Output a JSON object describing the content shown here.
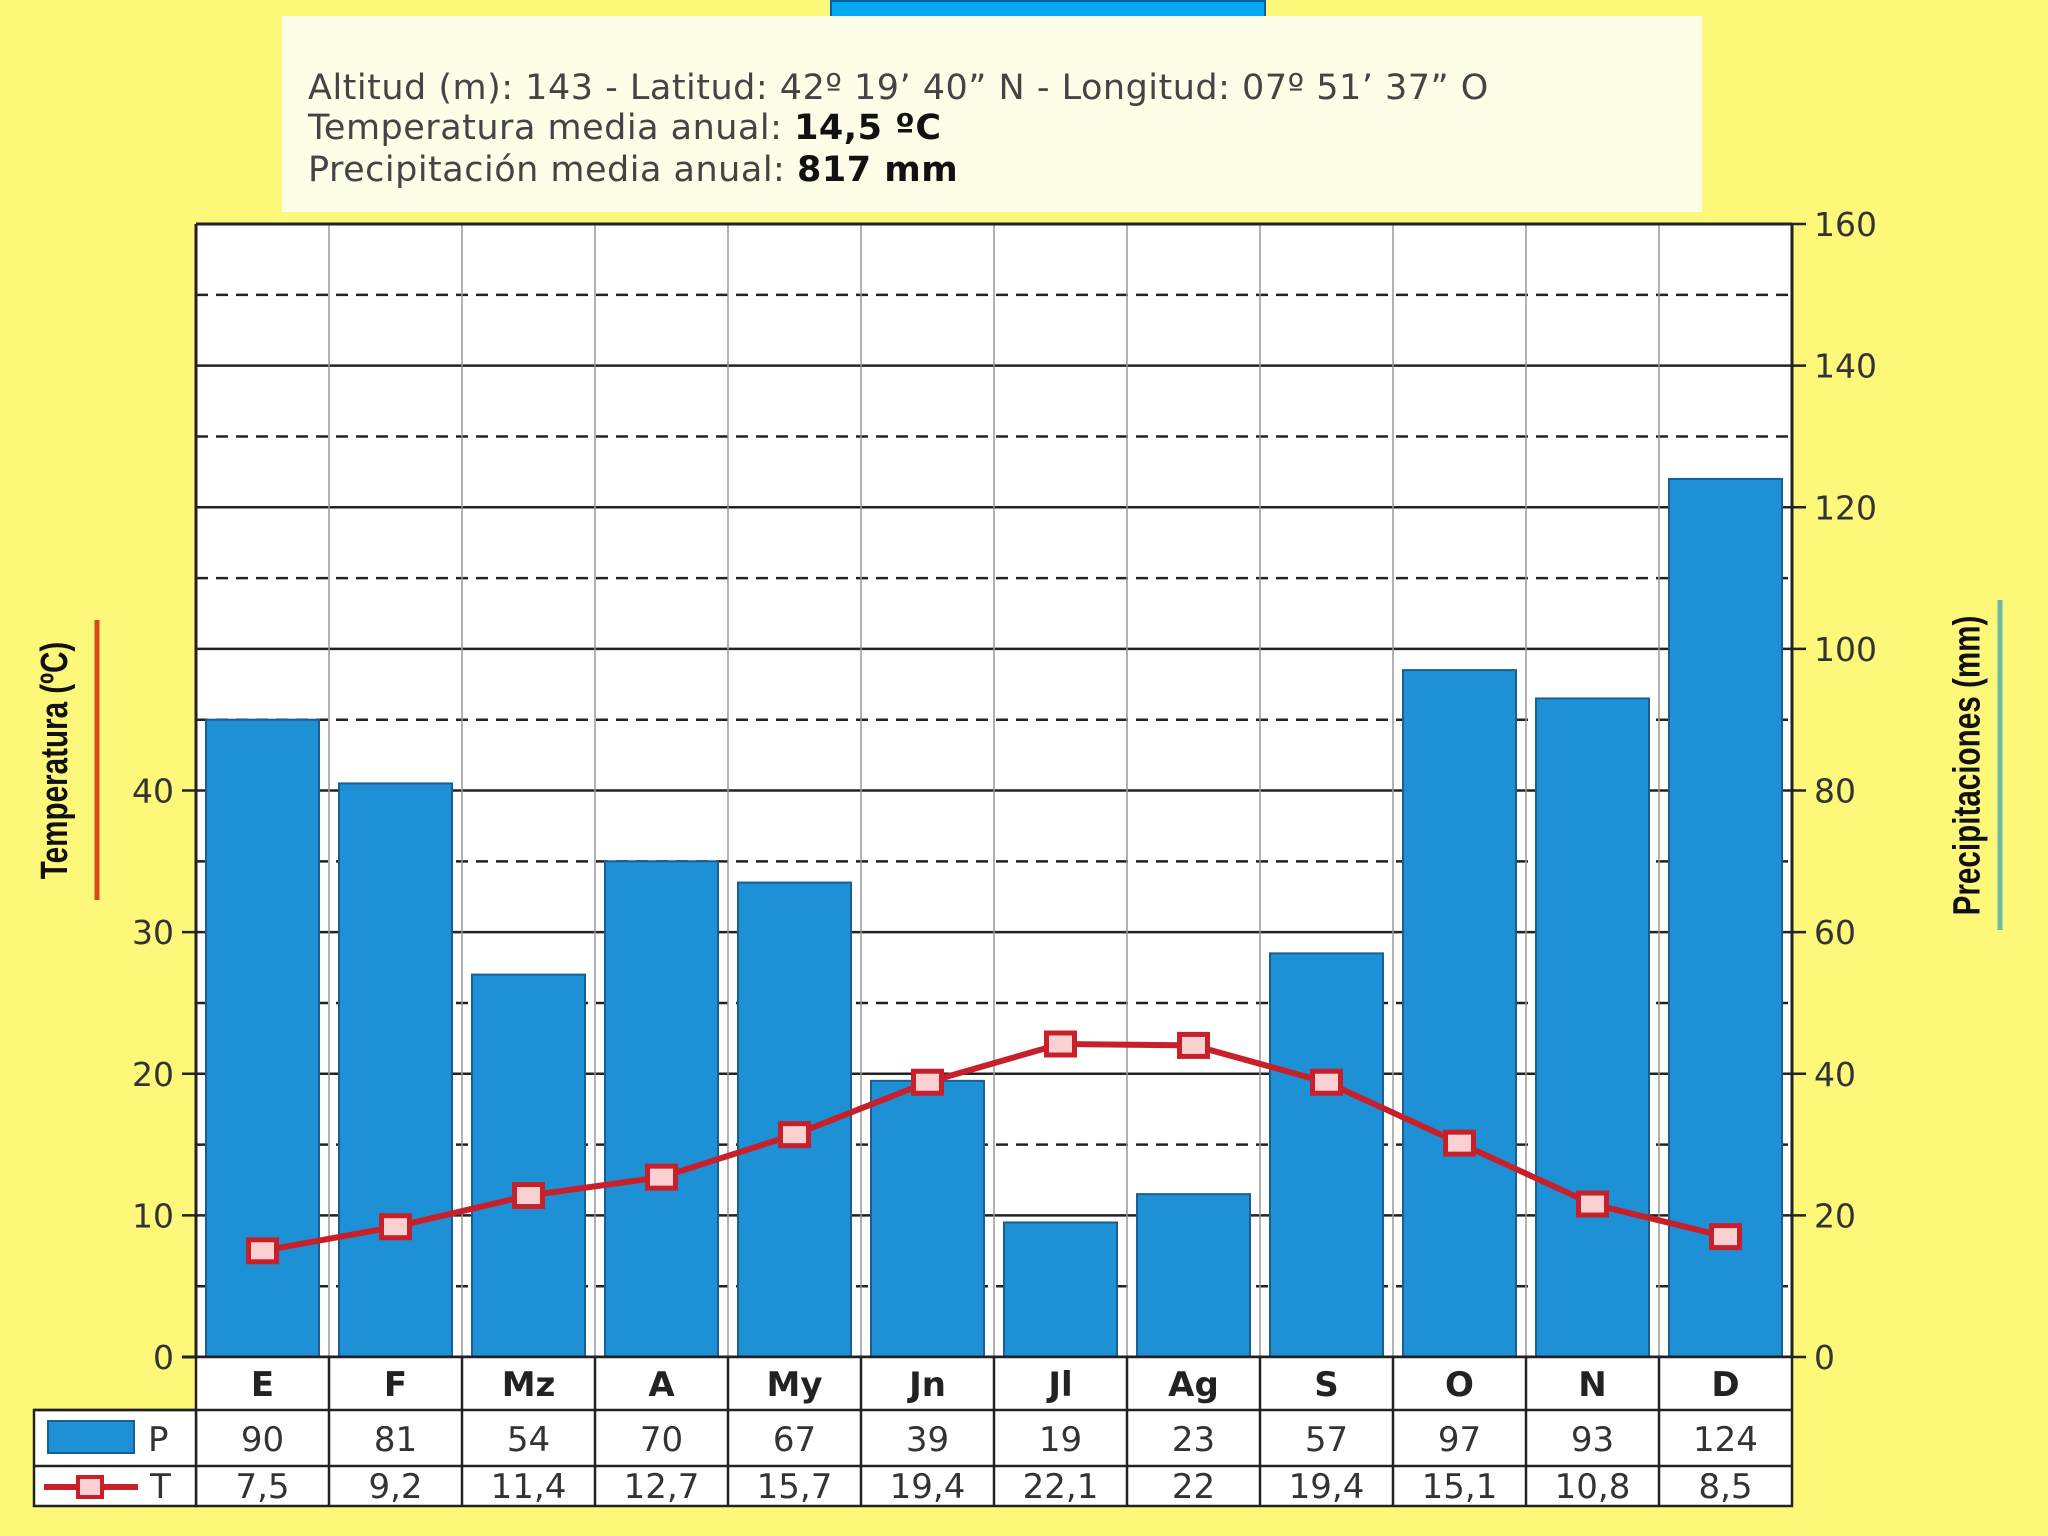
{
  "header": {
    "title": "",
    "altitud_label": "Altitud (m): 143 - Latitud: 42º 19’ 40” N - Longitud: 07º 51’ 37” O",
    "temp_label": "Temperatura media anual:",
    "temp_value": "14,5 ºC",
    "precip_label": "Precipitación media anual:",
    "precip_value": "817 mm"
  },
  "colors": {
    "background": "#fdf77a",
    "bar": "#1e90d6",
    "line": "#c8202a",
    "title_box": "#00a8f0"
  },
  "chart_data": {
    "type": "bar",
    "categories": [
      "E",
      "F",
      "Mz",
      "A",
      "My",
      "Jn",
      "Jl",
      "Ag",
      "S",
      "O",
      "N",
      "D"
    ],
    "series": [
      {
        "name": "P",
        "type": "bar",
        "axis": "right",
        "values": [
          90,
          81,
          54,
          70,
          67,
          39,
          19,
          23,
          57,
          97,
          93,
          124
        ]
      },
      {
        "name": "T",
        "type": "line",
        "axis": "left",
        "values": [
          7.5,
          9.2,
          11.4,
          12.7,
          15.7,
          19.4,
          22.1,
          22,
          19.4,
          15.1,
          10.8,
          8.5
        ]
      }
    ],
    "table_rows": [
      {
        "label": "P",
        "cells": [
          "90",
          "81",
          "54",
          "70",
          "67",
          "39",
          "19",
          "23",
          "57",
          "97",
          "93",
          "124"
        ]
      },
      {
        "label": "T",
        "cells": [
          "7,5",
          "9,2",
          "11,4",
          "12,7",
          "15,7",
          "19,4",
          "22,1",
          "22",
          "19,4",
          "15,1",
          "10,8",
          "8,5"
        ]
      }
    ],
    "ylabel_left": "Temperatura (ºC)",
    "ylabel_right": "Precipitaciones (mm)",
    "ylim_left": [
      0,
      80
    ],
    "ylim_right": [
      0,
      160
    ],
    "left_ticks": [
      "0",
      "10",
      "20",
      "30",
      "40"
    ],
    "right_ticks": [
      "0",
      "20",
      "40",
      "60",
      "80",
      "100",
      "120",
      "140",
      "160"
    ],
    "grid": true
  }
}
